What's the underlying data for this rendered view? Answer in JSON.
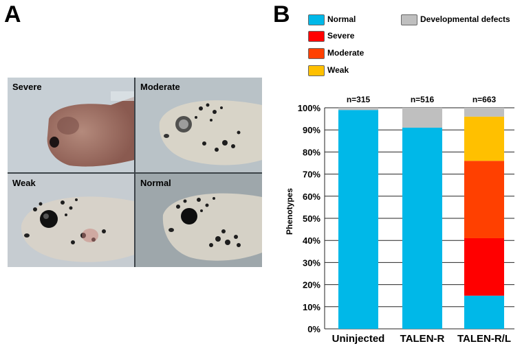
{
  "panel_a": {
    "letter": "A",
    "photos": [
      {
        "label": "Severe"
      },
      {
        "label": "Moderate"
      },
      {
        "label": "Weak"
      },
      {
        "label": "Normal"
      }
    ]
  },
  "panel_b": {
    "letter": "B",
    "legend": [
      {
        "label": "Normal",
        "color": "#00B8E8"
      },
      {
        "label": "Severe",
        "color": "#FF0000"
      },
      {
        "label": "Moderate",
        "color": "#FF4000"
      },
      {
        "label": "Weak",
        "color": "#FFC000"
      },
      {
        "label": "Developmental defects",
        "color": "#BFBFBF"
      }
    ]
  },
  "chart_data": {
    "type": "bar",
    "stacked": true,
    "categories": [
      "Uninjected",
      "TALEN-R",
      "TALEN-R/L"
    ],
    "n_labels": [
      "n=315",
      "n=516",
      "n=663"
    ],
    "ylabel": "Phenotypes",
    "ylim": [
      0,
      100
    ],
    "yticks": [
      "0%",
      "10%",
      "20%",
      "30%",
      "40%",
      "50%",
      "60%",
      "70%",
      "80%",
      "90%",
      "100%"
    ],
    "grid": true,
    "series": [
      {
        "name": "Normal",
        "color": "#00B8E8",
        "values": [
          99,
          91,
          15
        ]
      },
      {
        "name": "Severe",
        "color": "#FF0000",
        "values": [
          0,
          0,
          26
        ]
      },
      {
        "name": "Moderate",
        "color": "#FF4000",
        "values": [
          0,
          0,
          35
        ]
      },
      {
        "name": "Weak",
        "color": "#FFC000",
        "values": [
          0,
          0,
          20
        ]
      },
      {
        "name": "Developmental defects",
        "color": "#BFBFBF",
        "values": [
          1,
          9,
          4
        ]
      }
    ]
  }
}
